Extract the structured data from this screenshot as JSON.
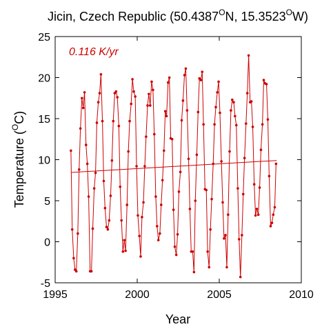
{
  "chart_data": {
    "type": "line",
    "title": {
      "prefix": "Jicin, Czech Republic (50.4387",
      "deg1": "O",
      "mid": "N, 15.3523",
      "deg2": "O",
      "suffix": "W)"
    },
    "xlabel": "Year",
    "ylabel": {
      "prefix": "Temperature (",
      "deg": "O",
      "suffix": "C)"
    },
    "annotation": "0.116 K/yr",
    "xlim": [
      1995,
      2010
    ],
    "ylim": [
      -5,
      25
    ],
    "xticks": [
      1995,
      2000,
      2005,
      2010
    ],
    "yticks": [
      -5,
      0,
      5,
      10,
      15,
      20,
      25
    ],
    "grid": false,
    "legend": "none",
    "colors": {
      "series": "#cc0000",
      "axes": "#000000"
    },
    "series": [
      {
        "points": [
          [
            1995.96,
            11.1
          ],
          [
            1996.04,
            1.5
          ],
          [
            1996.13,
            -2.0
          ],
          [
            1996.21,
            -3.4
          ],
          [
            1996.29,
            -3.6
          ],
          [
            1996.38,
            1.0
          ],
          [
            1996.46,
            8.8
          ],
          [
            1996.54,
            13.8
          ],
          [
            1996.63,
            17.5
          ],
          [
            1996.71,
            16.3
          ],
          [
            1996.79,
            18.2
          ],
          [
            1996.88,
            11.8
          ],
          [
            1996.96,
            9.5
          ],
          [
            1997.04,
            5.5
          ],
          [
            1997.13,
            -3.6
          ],
          [
            1997.21,
            -3.6
          ],
          [
            1997.29,
            1.6
          ],
          [
            1997.38,
            6.5
          ],
          [
            1997.46,
            8.4
          ],
          [
            1997.54,
            14.5
          ],
          [
            1997.63,
            17.0
          ],
          [
            1997.71,
            18.1
          ],
          [
            1997.79,
            20.4
          ],
          [
            1997.88,
            14.7
          ],
          [
            1997.96,
            7.4
          ],
          [
            1998.04,
            4.1
          ],
          [
            1998.13,
            1.8
          ],
          [
            1998.21,
            1.5
          ],
          [
            1998.29,
            2.6
          ],
          [
            1998.38,
            5.6
          ],
          [
            1998.46,
            9.9
          ],
          [
            1998.54,
            14.7
          ],
          [
            1998.63,
            18.1
          ],
          [
            1998.71,
            18.3
          ],
          [
            1998.79,
            17.6
          ],
          [
            1998.88,
            14.1
          ],
          [
            1998.96,
            6.7
          ],
          [
            1999.04,
            2.6
          ],
          [
            1999.13,
            -1.2
          ],
          [
            1999.21,
            0.2
          ],
          [
            1999.29,
            -1.1
          ],
          [
            1999.38,
            4.5
          ],
          [
            1999.46,
            11.0
          ],
          [
            1999.54,
            14.7
          ],
          [
            1999.63,
            16.8
          ],
          [
            1999.71,
            19.8
          ],
          [
            1999.79,
            18.3
          ],
          [
            1999.88,
            17.7
          ],
          [
            1999.96,
            9.2
          ],
          [
            2000.04,
            3.2
          ],
          [
            2000.13,
            0.7
          ],
          [
            2000.21,
            -1.8
          ],
          [
            2000.29,
            3.0
          ],
          [
            2000.38,
            4.8
          ],
          [
            2000.46,
            9.2
          ],
          [
            2000.54,
            12.8
          ],
          [
            2000.63,
            16.6
          ],
          [
            2000.71,
            18.0
          ],
          [
            2000.79,
            16.6
          ],
          [
            2000.88,
            19.5
          ],
          [
            2000.96,
            18.5
          ],
          [
            2001.04,
            13.1
          ],
          [
            2001.13,
            5.5
          ],
          [
            2001.21,
            1.9
          ],
          [
            2001.29,
            0.2
          ],
          [
            2001.38,
            1.0
          ],
          [
            2001.46,
            4.5
          ],
          [
            2001.54,
            7.5
          ],
          [
            2001.63,
            11.1
          ],
          [
            2001.71,
            15.9
          ],
          [
            2001.79,
            15.3
          ],
          [
            2001.88,
            19.4
          ],
          [
            2001.96,
            20.0
          ],
          [
            2002.04,
            12.6
          ],
          [
            2002.13,
            12.5
          ],
          [
            2002.21,
            3.9
          ],
          [
            2002.29,
            -0.6
          ],
          [
            2002.38,
            -1.6
          ],
          [
            2002.46,
            0.9
          ],
          [
            2002.54,
            6.1
          ],
          [
            2002.63,
            8.5
          ],
          [
            2002.71,
            14.8
          ],
          [
            2002.79,
            17.2
          ],
          [
            2002.88,
            20.3
          ],
          [
            2002.96,
            21.1
          ],
          [
            2003.04,
            16.0
          ],
          [
            2003.13,
            10.1
          ],
          [
            2003.21,
            4.0
          ],
          [
            2003.29,
            -1.2
          ],
          [
            2003.38,
            -1.2
          ],
          [
            2003.46,
            -3.7
          ],
          [
            2003.54,
            5.0
          ],
          [
            2003.63,
            10.6
          ],
          [
            2003.71,
            15.8
          ],
          [
            2003.79,
            19.9
          ],
          [
            2003.88,
            19.7
          ],
          [
            2003.96,
            20.7
          ],
          [
            2004.04,
            14.3
          ],
          [
            2004.13,
            6.4
          ],
          [
            2004.21,
            6.3
          ],
          [
            2004.29,
            -1.2
          ],
          [
            2004.38,
            -3.1
          ],
          [
            2004.46,
            1.5
          ],
          [
            2004.54,
            5.2
          ],
          [
            2004.63,
            9.5
          ],
          [
            2004.71,
            14.3
          ],
          [
            2004.79,
            16.4
          ],
          [
            2004.88,
            18.2
          ],
          [
            2004.96,
            19.5
          ],
          [
            2005.04,
            15.7
          ],
          [
            2005.13,
            9.8
          ],
          [
            2005.21,
            4.8
          ],
          [
            2005.29,
            0.4
          ],
          [
            2005.38,
            0.8
          ],
          [
            2005.46,
            -3.1
          ],
          [
            2005.54,
            3.3
          ],
          [
            2005.63,
            11.0
          ],
          [
            2005.71,
            16.0
          ],
          [
            2005.79,
            17.3
          ],
          [
            2005.88,
            17.0
          ],
          [
            2005.96,
            15.3
          ],
          [
            2006.04,
            14.2
          ],
          [
            2006.13,
            6.5
          ],
          [
            2006.21,
            0.3
          ],
          [
            2006.29,
            -4.3
          ],
          [
            2006.38,
            0.8
          ],
          [
            2006.46,
            5.8
          ],
          [
            2006.54,
            10.2
          ],
          [
            2006.63,
            14.4
          ],
          [
            2006.71,
            18.1
          ],
          [
            2006.79,
            22.7
          ],
          [
            2006.88,
            17.0
          ],
          [
            2006.96,
            17.1
          ],
          [
            2007.04,
            14.0
          ],
          [
            2007.13,
            7.0
          ],
          [
            2007.21,
            3.2
          ],
          [
            2007.29,
            4.0
          ],
          [
            2007.38,
            3.3
          ],
          [
            2007.46,
            6.6
          ],
          [
            2007.54,
            11.2
          ],
          [
            2007.63,
            14.3
          ],
          [
            2007.71,
            19.7
          ],
          [
            2007.79,
            19.3
          ],
          [
            2007.88,
            19.2
          ],
          [
            2007.96,
            14.9
          ],
          [
            2008.04,
            8.0
          ],
          [
            2008.13,
            1.9
          ],
          [
            2008.21,
            2.3
          ],
          [
            2008.29,
            3.3
          ],
          [
            2008.38,
            4.2
          ],
          [
            2008.46,
            9.5
          ]
        ]
      }
    ],
    "trend": {
      "x": [
        1996.0,
        2008.5
      ],
      "y": [
        8.45,
        9.9
      ]
    }
  }
}
